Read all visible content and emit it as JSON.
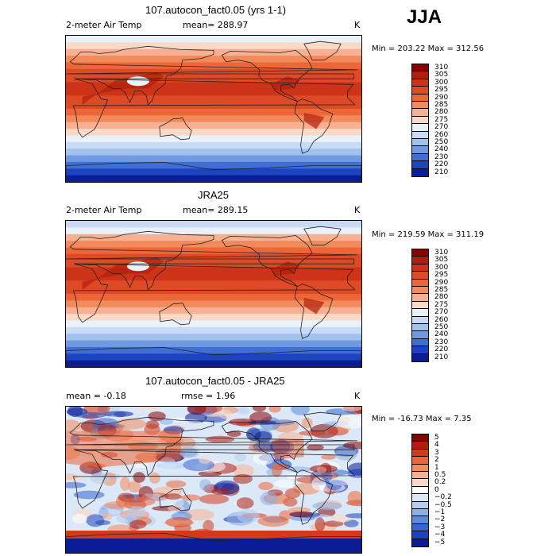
{
  "season": "JJA",
  "panels": [
    {
      "title": "107.autocon_fact0.05 (yrs 1-1)",
      "left_label": "2-meter Air Temp",
      "mid_label": "mean= 288.97",
      "unit": "K",
      "minmax": "Min = 203.22 Max = 312.56",
      "colorbar_labels": [
        "310",
        "305",
        "300",
        "295",
        "290",
        "285",
        "280",
        "275",
        "270",
        "260",
        "250",
        "240",
        "230",
        "220",
        "210"
      ]
    },
    {
      "title": "JRA25",
      "left_label": "2-meter Air Temp",
      "mid_label": "mean= 289.15",
      "unit": "K",
      "minmax": "Min = 219.59 Max = 311.19",
      "colorbar_labels": [
        "310",
        "305",
        "300",
        "295",
        "290",
        "285",
        "280",
        "275",
        "270",
        "260",
        "250",
        "240",
        "230",
        "220",
        "210"
      ]
    },
    {
      "title": "107.autocon_fact0.05 - JRA25",
      "left_label": "mean =   -0.18",
      "mid_label": "rmse =   1.96",
      "unit": "K",
      "minmax": "Min = -16.73 Max =   7.35",
      "colorbar_labels": [
        "5",
        "4",
        "3",
        "2",
        "1",
        "0.5",
        "0.2",
        "0",
        "−0.2",
        "−0.5",
        "−1",
        "−2",
        "−3",
        "−4",
        "−5"
      ]
    }
  ],
  "chart_data": [
    {
      "type": "heatmap",
      "title": "107.autocon_fact0.05 (yrs 1-1)",
      "variable": "2-meter Air Temp",
      "mean": 288.97,
      "min": 203.22,
      "max": 312.56,
      "unit": "K",
      "levels": [
        210,
        220,
        230,
        240,
        250,
        260,
        270,
        275,
        280,
        285,
        290,
        295,
        300,
        305,
        310
      ]
    },
    {
      "type": "heatmap",
      "title": "JRA25",
      "variable": "2-meter Air Temp",
      "mean": 289.15,
      "min": 219.59,
      "max": 311.19,
      "unit": "K",
      "levels": [
        210,
        220,
        230,
        240,
        250,
        260,
        270,
        275,
        280,
        285,
        290,
        295,
        300,
        305,
        310
      ]
    },
    {
      "type": "heatmap",
      "title": "107.autocon_fact0.05 - JRA25",
      "mean": -0.18,
      "rmse": 1.96,
      "min": -16.73,
      "max": 7.35,
      "unit": "K",
      "levels": [
        -5,
        -4,
        -3,
        -2,
        -1,
        -0.5,
        -0.2,
        0,
        0.2,
        0.5,
        1,
        2,
        3,
        4,
        5
      ]
    }
  ],
  "palettes": {
    "temp": [
      "#8b0000",
      "#b01f0c",
      "#cc3318",
      "#de4a26",
      "#ec6638",
      "#f38a5c",
      "#f7b091",
      "#fbd9c7",
      "#e9f2fb",
      "#c7dcf4",
      "#a1c2ec",
      "#6f99e0",
      "#3f6fd4",
      "#1c44c0",
      "#0a1c96"
    ],
    "diff": [
      "#8b0000",
      "#b01f0c",
      "#d33a1c",
      "#ec6638",
      "#f38a5c",
      "#f7b091",
      "#fbd9c7",
      "#ffffff",
      "#dbe8f7",
      "#b4cdef",
      "#8ab0e6",
      "#5b8bdc",
      "#3665cf",
      "#1c44c0",
      "#0a1c96"
    ]
  }
}
